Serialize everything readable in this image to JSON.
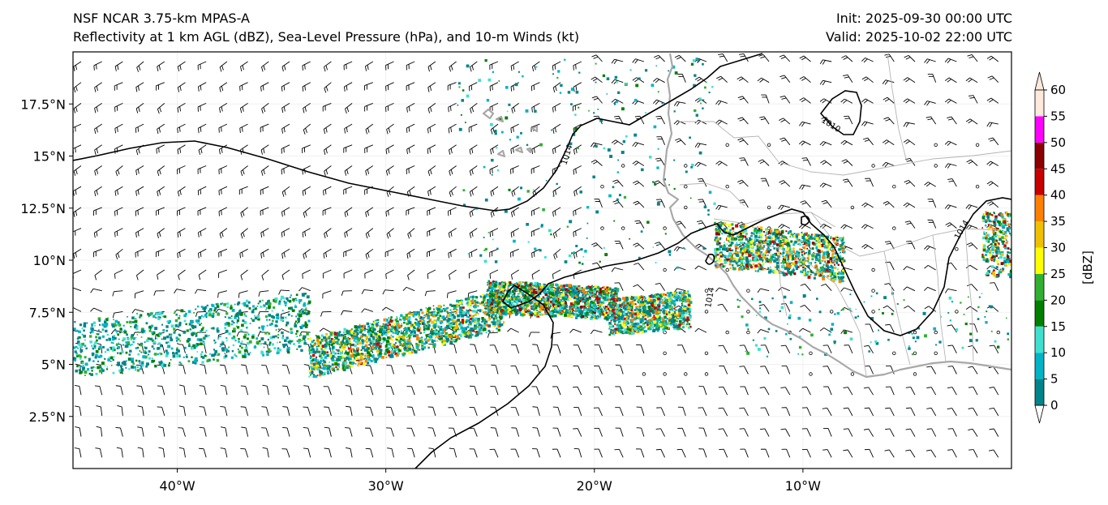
{
  "header": {
    "left_line1": "NSF NCAR 3.75-km MPAS-A",
    "left_line2": "Reflectivity at 1 km AGL (dBZ), Sea-Level Pressure (hPa), and 10-m Winds (kt)",
    "right_line1": "Init: 2025-09-30 00:00 UTC",
    "right_line2": "Valid: 2025-10-02 22:00 UTC"
  },
  "map": {
    "lon_range": [
      -45,
      0
    ],
    "lat_range": [
      0,
      20
    ],
    "lon_ticks": [
      {
        "value": -40,
        "label": "40°W"
      },
      {
        "value": -30,
        "label": "30°W"
      },
      {
        "value": -20,
        "label": "20°W"
      },
      {
        "value": -10,
        "label": "10°W"
      }
    ],
    "lat_ticks": [
      {
        "value": 2.5,
        "label": "2.5°N"
      },
      {
        "value": 5,
        "label": "5°N"
      },
      {
        "value": 7.5,
        "label": "7.5°N"
      },
      {
        "value": 10,
        "label": "10°N"
      },
      {
        "value": 12.5,
        "label": "12.5°N"
      },
      {
        "value": 15,
        "label": "15°N"
      },
      {
        "value": 17.5,
        "label": "17.5°N"
      }
    ],
    "isobar_labels": [
      "1014",
      "1014",
      "1014",
      "1010"
    ],
    "coastline_color": "#a8a8a8",
    "isobar_color": "#000000"
  },
  "colorbar": {
    "label": "[dBZ]",
    "ticks": [
      "0",
      "5",
      "10",
      "15",
      "20",
      "25",
      "30",
      "35",
      "40",
      "45",
      "50",
      "55",
      "60"
    ],
    "colors": [
      "#ffffff",
      "#00848b",
      "#00b4c8",
      "#40e0d0",
      "#008000",
      "#30b030",
      "#ffff00",
      "#f0c000",
      "#ff8000",
      "#c80000",
      "#8b0000",
      "#ff00ff",
      "#ffe8dc"
    ]
  }
}
